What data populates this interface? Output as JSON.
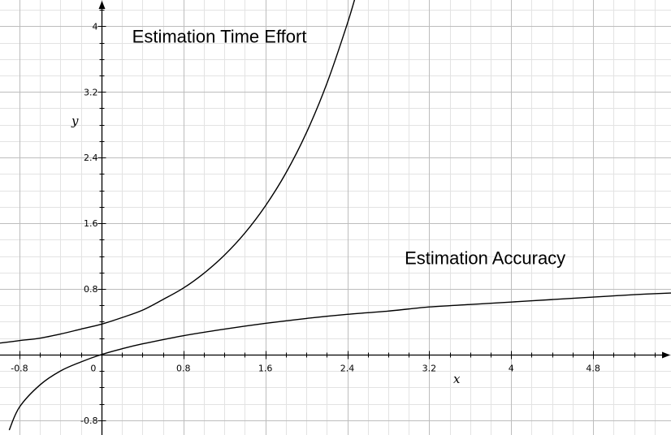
{
  "chart_data": {
    "type": "line",
    "title": "",
    "xlabel": "x",
    "ylabel": "y",
    "xlim": [
      -0.99,
      5.56
    ],
    "ylim": [
      -0.98,
      4.32
    ],
    "grid": true,
    "x_major_ticks": [
      -0.8,
      0,
      0.8,
      1.6,
      2.4,
      3.2,
      4,
      4.8
    ],
    "x_tick_labels": [
      "-0.8",
      "0",
      "0.8",
      "1.6",
      "2.4",
      "3.2",
      "4",
      "4.8"
    ],
    "y_major_ticks": [
      -0.8,
      0.8,
      1.6,
      2.4,
      3.2,
      4
    ],
    "y_tick_labels": [
      "-0.8",
      "0.8",
      "1.6",
      "2.4",
      "3.2",
      "4"
    ],
    "annotations": [
      {
        "text": "Estimation Time Effort",
        "x": 0.3,
        "y": 3.8
      },
      {
        "text": "Estimation Accuracy",
        "x": 2.96,
        "y": 1.1
      }
    ],
    "series": [
      {
        "x": [
          -0.99,
          -0.8,
          -0.6,
          -0.4,
          -0.2,
          0,
          0.2,
          0.4,
          0.6,
          0.8,
          1.0,
          1.2,
          1.4,
          1.6,
          1.8,
          2.0,
          2.2,
          2.4,
          2.5
        ],
        "y": [
          0.14,
          0.17,
          0.2,
          0.25,
          0.31,
          0.37,
          0.45,
          0.54,
          0.67,
          0.81,
          0.99,
          1.21,
          1.48,
          1.81,
          2.21,
          2.7,
          3.3,
          4.03,
          4.45
        ]
      },
      {
        "x": [
          -0.9,
          -0.8,
          -0.6,
          -0.4,
          -0.2,
          0,
          0.2,
          0.4,
          0.8,
          1.2,
          1.6,
          2.0,
          2.4,
          2.8,
          3.2,
          3.6,
          4.0,
          4.4,
          4.8,
          5.2,
          5.56
        ],
        "y": [
          -0.92,
          -0.64,
          -0.37,
          -0.2,
          -0.09,
          0,
          0.07,
          0.13,
          0.23,
          0.31,
          0.38,
          0.44,
          0.49,
          0.53,
          0.58,
          0.61,
          0.64,
          0.67,
          0.7,
          0.73,
          0.75
        ]
      }
    ]
  }
}
